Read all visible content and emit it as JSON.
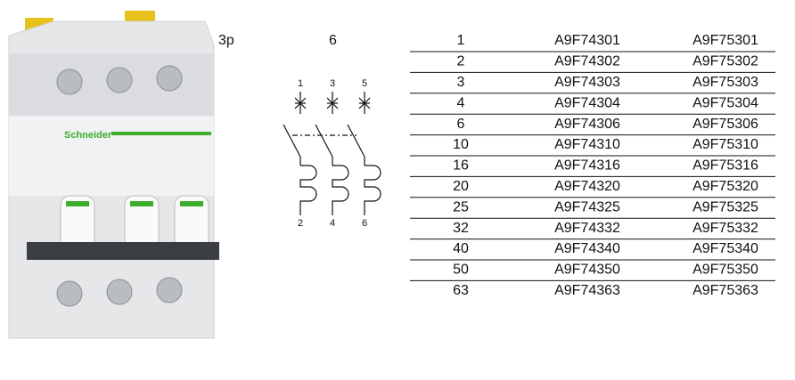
{
  "product": {
    "brand": "Schneider",
    "poles": "3p",
    "width": "6"
  },
  "diagram": {
    "top_terminals": [
      "1",
      "3",
      "5"
    ],
    "bottom_terminals": [
      "2",
      "4",
      "6"
    ]
  },
  "table": {
    "rows": [
      [
        "1",
        "A9F74301",
        "A9F75301"
      ],
      [
        "2",
        "A9F74302",
        "A9F75302"
      ],
      [
        "3",
        "A9F74303",
        "A9F75303"
      ],
      [
        "4",
        "A9F74304",
        "A9F75304"
      ],
      [
        "6",
        "A9F74306",
        "A9F75306"
      ],
      [
        "10",
        "A9F74310",
        "A9F75310"
      ],
      [
        "16",
        "A9F74316",
        "A9F75316"
      ],
      [
        "20",
        "A9F74320",
        "A9F75320"
      ],
      [
        "25",
        "A9F74325",
        "A9F75325"
      ],
      [
        "32",
        "A9F74332",
        "A9F75332"
      ],
      [
        "40",
        "A9F74340",
        "A9F75340"
      ],
      [
        "50",
        "A9F74350",
        "A9F75350"
      ],
      [
        "63",
        "A9F74363",
        "A9F75363"
      ]
    ]
  }
}
